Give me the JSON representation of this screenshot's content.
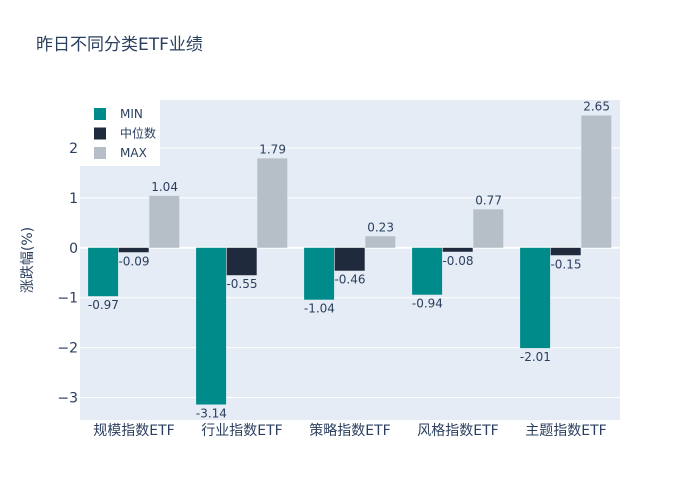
{
  "chart_data": {
    "type": "bar",
    "title": "昨日不同分类ETF业绩",
    "xlabel": "",
    "ylabel": "涨跌幅(%)",
    "categories": [
      "规模指数ETF",
      "行业指数ETF",
      "策略指数ETF",
      "风格指数ETF",
      "主题指数ETF"
    ],
    "series": [
      {
        "name": "MIN",
        "color": "#008b8b",
        "values": [
          -0.97,
          -3.14,
          -1.04,
          -0.94,
          -2.01
        ]
      },
      {
        "name": "中位数",
        "color": "#1f2a3c",
        "values": [
          -0.09,
          -0.55,
          -0.46,
          -0.08,
          -0.15
        ]
      },
      {
        "name": "MAX",
        "color": "#b6bec7",
        "values": [
          1.04,
          1.79,
          0.23,
          0.77,
          2.65
        ]
      }
    ],
    "ylim": [
      -3.45,
      2.96
    ],
    "yticks": [
      -3,
      -2,
      -1,
      0,
      1,
      2
    ],
    "grid": true,
    "legend_position": "top-left",
    "plot_background": "#e5ecf6"
  }
}
